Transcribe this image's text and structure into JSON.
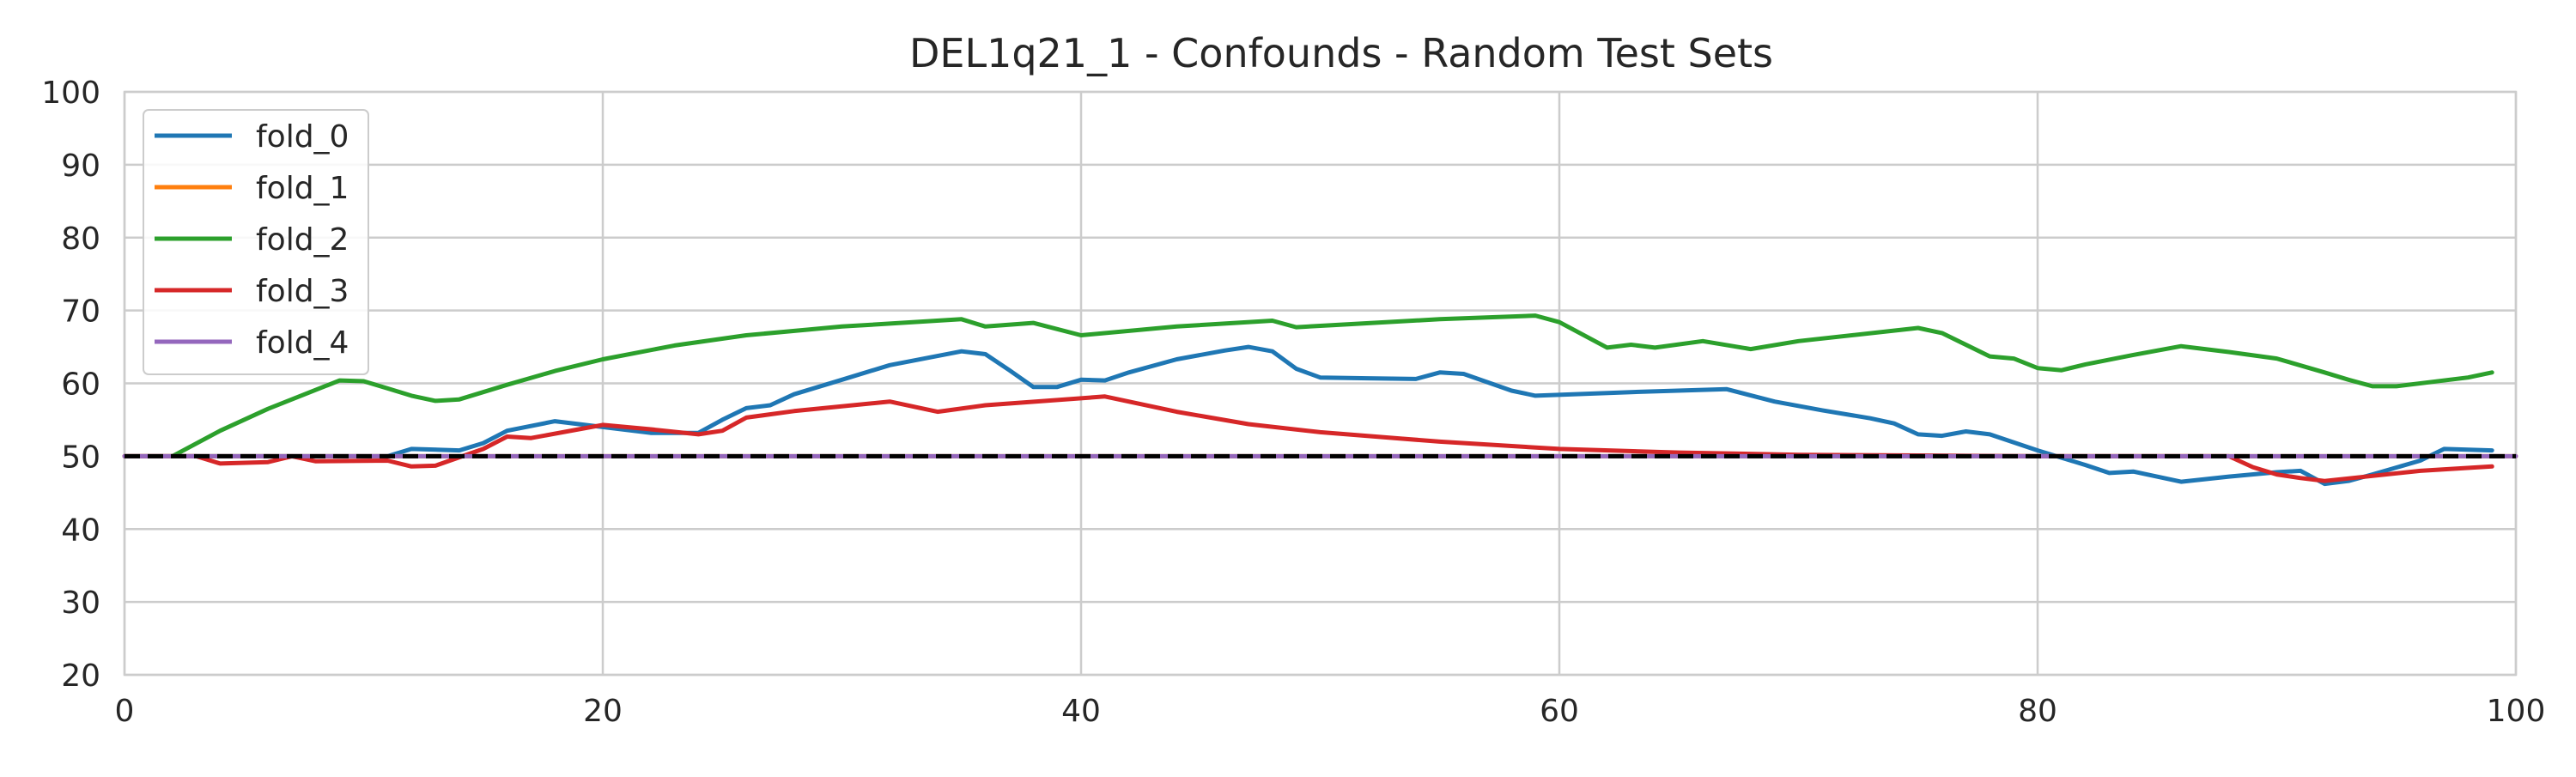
{
  "chart_data": {
    "type": "line",
    "title": "DEL1q21_1 - Confounds - Random Test Sets",
    "xlabel": "",
    "ylabel": "",
    "xlim": [
      0,
      100
    ],
    "ylim": [
      20,
      100
    ],
    "xticks": [
      0,
      20,
      40,
      60,
      80,
      100
    ],
    "yticks": [
      20,
      30,
      40,
      50,
      60,
      70,
      80,
      90,
      100
    ],
    "grid": true,
    "legend_position": "top-left",
    "reference_line": {
      "y": 50,
      "style": "dashed",
      "color": "#000000"
    },
    "series": [
      {
        "name": "fold_0",
        "color": "#1f77b4",
        "x": [
          0,
          11,
          12,
          14,
          15,
          16,
          18,
          20,
          22,
          24,
          25,
          26,
          27,
          28,
          30,
          32,
          35,
          36,
          37,
          38,
          39,
          40,
          41,
          42,
          44,
          46,
          47,
          48,
          49,
          50,
          52,
          54,
          55,
          56,
          58,
          59,
          63,
          67,
          69,
          71,
          73,
          74,
          75,
          76,
          77,
          78,
          80,
          82,
          83,
          84,
          86,
          88,
          90,
          91,
          92,
          93,
          94,
          96,
          97,
          99
        ],
        "y": [
          50,
          50,
          51,
          50.8,
          51.8,
          53.5,
          54.8,
          54,
          53.2,
          53.2,
          55,
          56.6,
          57,
          58.5,
          60.5,
          62.5,
          64.4,
          64,
          61.8,
          59.5,
          59.5,
          60.5,
          60.4,
          61.5,
          63.3,
          64.5,
          65,
          64.4,
          62,
          60.8,
          60.7,
          60.6,
          61.5,
          61.3,
          59,
          58.3,
          58.8,
          59.2,
          57.5,
          56.3,
          55.2,
          54.5,
          53,
          52.8,
          53.4,
          53,
          50.8,
          48.8,
          47.7,
          47.9,
          46.5,
          47.2,
          47.8,
          48,
          46.2,
          46.6,
          47.5,
          49.4,
          51,
          50.8
        ]
      },
      {
        "name": "fold_1",
        "color": "#ff7f0e",
        "x": [
          0,
          100
        ],
        "y": [
          50,
          50
        ]
      },
      {
        "name": "fold_2",
        "color": "#2ca02c",
        "x": [
          2,
          4,
          6,
          8,
          9,
          10,
          11,
          12,
          13,
          14,
          16,
          18,
          20,
          23,
          26,
          30,
          35,
          36,
          38,
          40,
          44,
          48,
          49,
          55,
          59,
          60,
          62,
          63,
          64,
          66,
          68,
          70,
          75,
          76,
          78,
          79,
          80,
          81,
          82,
          84,
          86,
          88,
          90,
          92,
          93,
          94,
          95,
          98,
          99
        ],
        "y": [
          50,
          53.5,
          56.5,
          59.1,
          60.4,
          60.3,
          59.3,
          58.3,
          57.6,
          57.8,
          59.8,
          61.7,
          63.3,
          65.2,
          66.6,
          67.8,
          68.8,
          67.8,
          68.3,
          66.6,
          67.8,
          68.6,
          67.7,
          68.8,
          69.3,
          68.4,
          64.9,
          65.3,
          64.9,
          65.8,
          64.7,
          65.8,
          67.6,
          66.9,
          63.7,
          63.4,
          62.1,
          61.8,
          62.6,
          63.9,
          65.1,
          64.3,
          63.4,
          61.5,
          60.5,
          59.6,
          59.6,
          60.8,
          61.5
        ]
      },
      {
        "name": "fold_3",
        "color": "#d62728",
        "x": [
          0,
          3,
          4,
          6,
          7,
          8,
          11,
          12,
          13,
          15,
          16,
          17,
          19,
          20,
          22,
          24,
          25,
          26,
          28,
          32,
          34,
          36,
          41,
          44,
          47,
          50,
          55,
          60,
          65,
          70,
          75,
          80,
          85,
          88,
          89,
          90,
          91,
          92,
          94,
          96,
          99
        ],
        "y": [
          50,
          50,
          49,
          49.2,
          50,
          49.3,
          49.4,
          48.6,
          48.7,
          51,
          52.7,
          52.5,
          53.7,
          54.3,
          53.7,
          53,
          53.5,
          55.3,
          56.2,
          57.5,
          56.1,
          57,
          58.2,
          56.1,
          54.4,
          53.3,
          52,
          51,
          50.5,
          50.2,
          50.1,
          50,
          50,
          50,
          48.5,
          47.5,
          47,
          46.6,
          47.3,
          48,
          48.6
        ]
      },
      {
        "name": "fold_4",
        "color": "#9467bd",
        "x": [
          0,
          100
        ],
        "y": [
          50,
          50
        ]
      }
    ]
  }
}
